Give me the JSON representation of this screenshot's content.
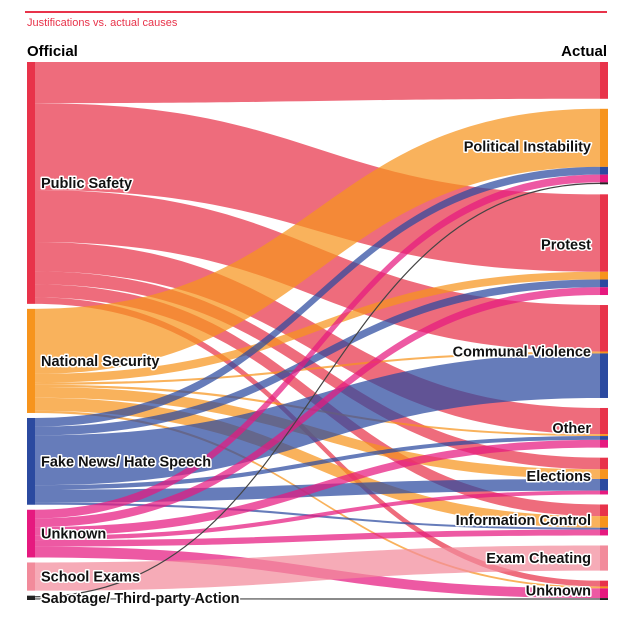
{
  "header": {
    "subtitle": "Justifications vs. actual causes",
    "left_heading": "Official",
    "right_heading": "Actual"
  },
  "colors": {
    "Public Safety": "#e8334a",
    "National Security": "#f7941d",
    "Fake News/ Hate Speech": "#2b4aa0",
    "Unknown": "#e6197f",
    "School Exams": "#f28b9b",
    "Sabotage/ Third-party Action": "#222222",
    "accent": "#e8334a"
  },
  "chart_data": {
    "type": "sankey",
    "title": "Justifications vs. actual causes",
    "left_axis_label": "Official",
    "right_axis_label": "Actual",
    "left_nodes": [
      "Public Safety",
      "National Security",
      "Fake News/ Hate Speech",
      "Unknown",
      "School Exams",
      "Sabotage/ Third-party Action"
    ],
    "right_nodes": [
      "",
      "Political Instability",
      "Protest",
      "Communal Violence",
      "Other",
      "Elections",
      "Information Control",
      "Exam Cheating",
      "Unknown"
    ],
    "right_labels": [
      "",
      "Political Instability",
      "Protest",
      "Communal Violence",
      "Other",
      "Elections",
      "Information Control",
      "Exam Cheating",
      "Unknown"
    ],
    "flows": [
      {
        "source": "Public Safety",
        "target": "",
        "value": 38
      },
      {
        "source": "Public Safety",
        "target": "Protest",
        "value": 80
      },
      {
        "source": "Public Safety",
        "target": "Communal Violence",
        "value": 48
      },
      {
        "source": "Public Safety",
        "target": "Other",
        "value": 27
      },
      {
        "source": "Public Safety",
        "target": "Elections",
        "value": 12
      },
      {
        "source": "Public Safety",
        "target": "Information Control",
        "value": 12
      },
      {
        "source": "Public Safety",
        "target": "Unknown",
        "value": 6
      },
      {
        "source": "National Security",
        "target": "Political Instability",
        "value": 60
      },
      {
        "source": "National Security",
        "target": "Protest",
        "value": 8
      },
      {
        "source": "National Security",
        "target": "Communal Violence",
        "value": 2
      },
      {
        "source": "National Security",
        "target": "Other",
        "value": 2
      },
      {
        "source": "National Security",
        "target": "Elections",
        "value": 10
      },
      {
        "source": "National Security",
        "target": "Information Control",
        "value": 12
      },
      {
        "source": "National Security",
        "target": "Unknown",
        "value": 2
      },
      {
        "source": "Fake News/ Hate Speech",
        "target": "Political Instability",
        "value": 8
      },
      {
        "source": "Fake News/ Hate Speech",
        "target": "Protest",
        "value": 8
      },
      {
        "source": "Fake News/ Hate Speech",
        "target": "Communal Violence",
        "value": 46
      },
      {
        "source": "Fake News/ Hate Speech",
        "target": "Other",
        "value": 4
      },
      {
        "source": "Fake News/ Hate Speech",
        "target": "Elections",
        "value": 12
      },
      {
        "source": "Fake News/ Hate Speech",
        "target": "Information Control",
        "value": 2
      },
      {
        "source": "Unknown",
        "target": "Political Instability",
        "value": 8
      },
      {
        "source": "Unknown",
        "target": "Protest",
        "value": 8
      },
      {
        "source": "Unknown",
        "target": "Other",
        "value": 8
      },
      {
        "source": "Unknown",
        "target": "Elections",
        "value": 4
      },
      {
        "source": "Unknown",
        "target": "Information Control",
        "value": 6
      },
      {
        "source": "Unknown",
        "target": "Unknown",
        "value": 10
      },
      {
        "source": "School Exams",
        "target": "Exam Cheating",
        "value": 26
      },
      {
        "source": "Sabotage/ Third-party Action",
        "target": "Political Instability",
        "value": 2
      },
      {
        "source": "Sabotage/ Third-party Action",
        "target": "Unknown",
        "value": 2
      }
    ]
  }
}
